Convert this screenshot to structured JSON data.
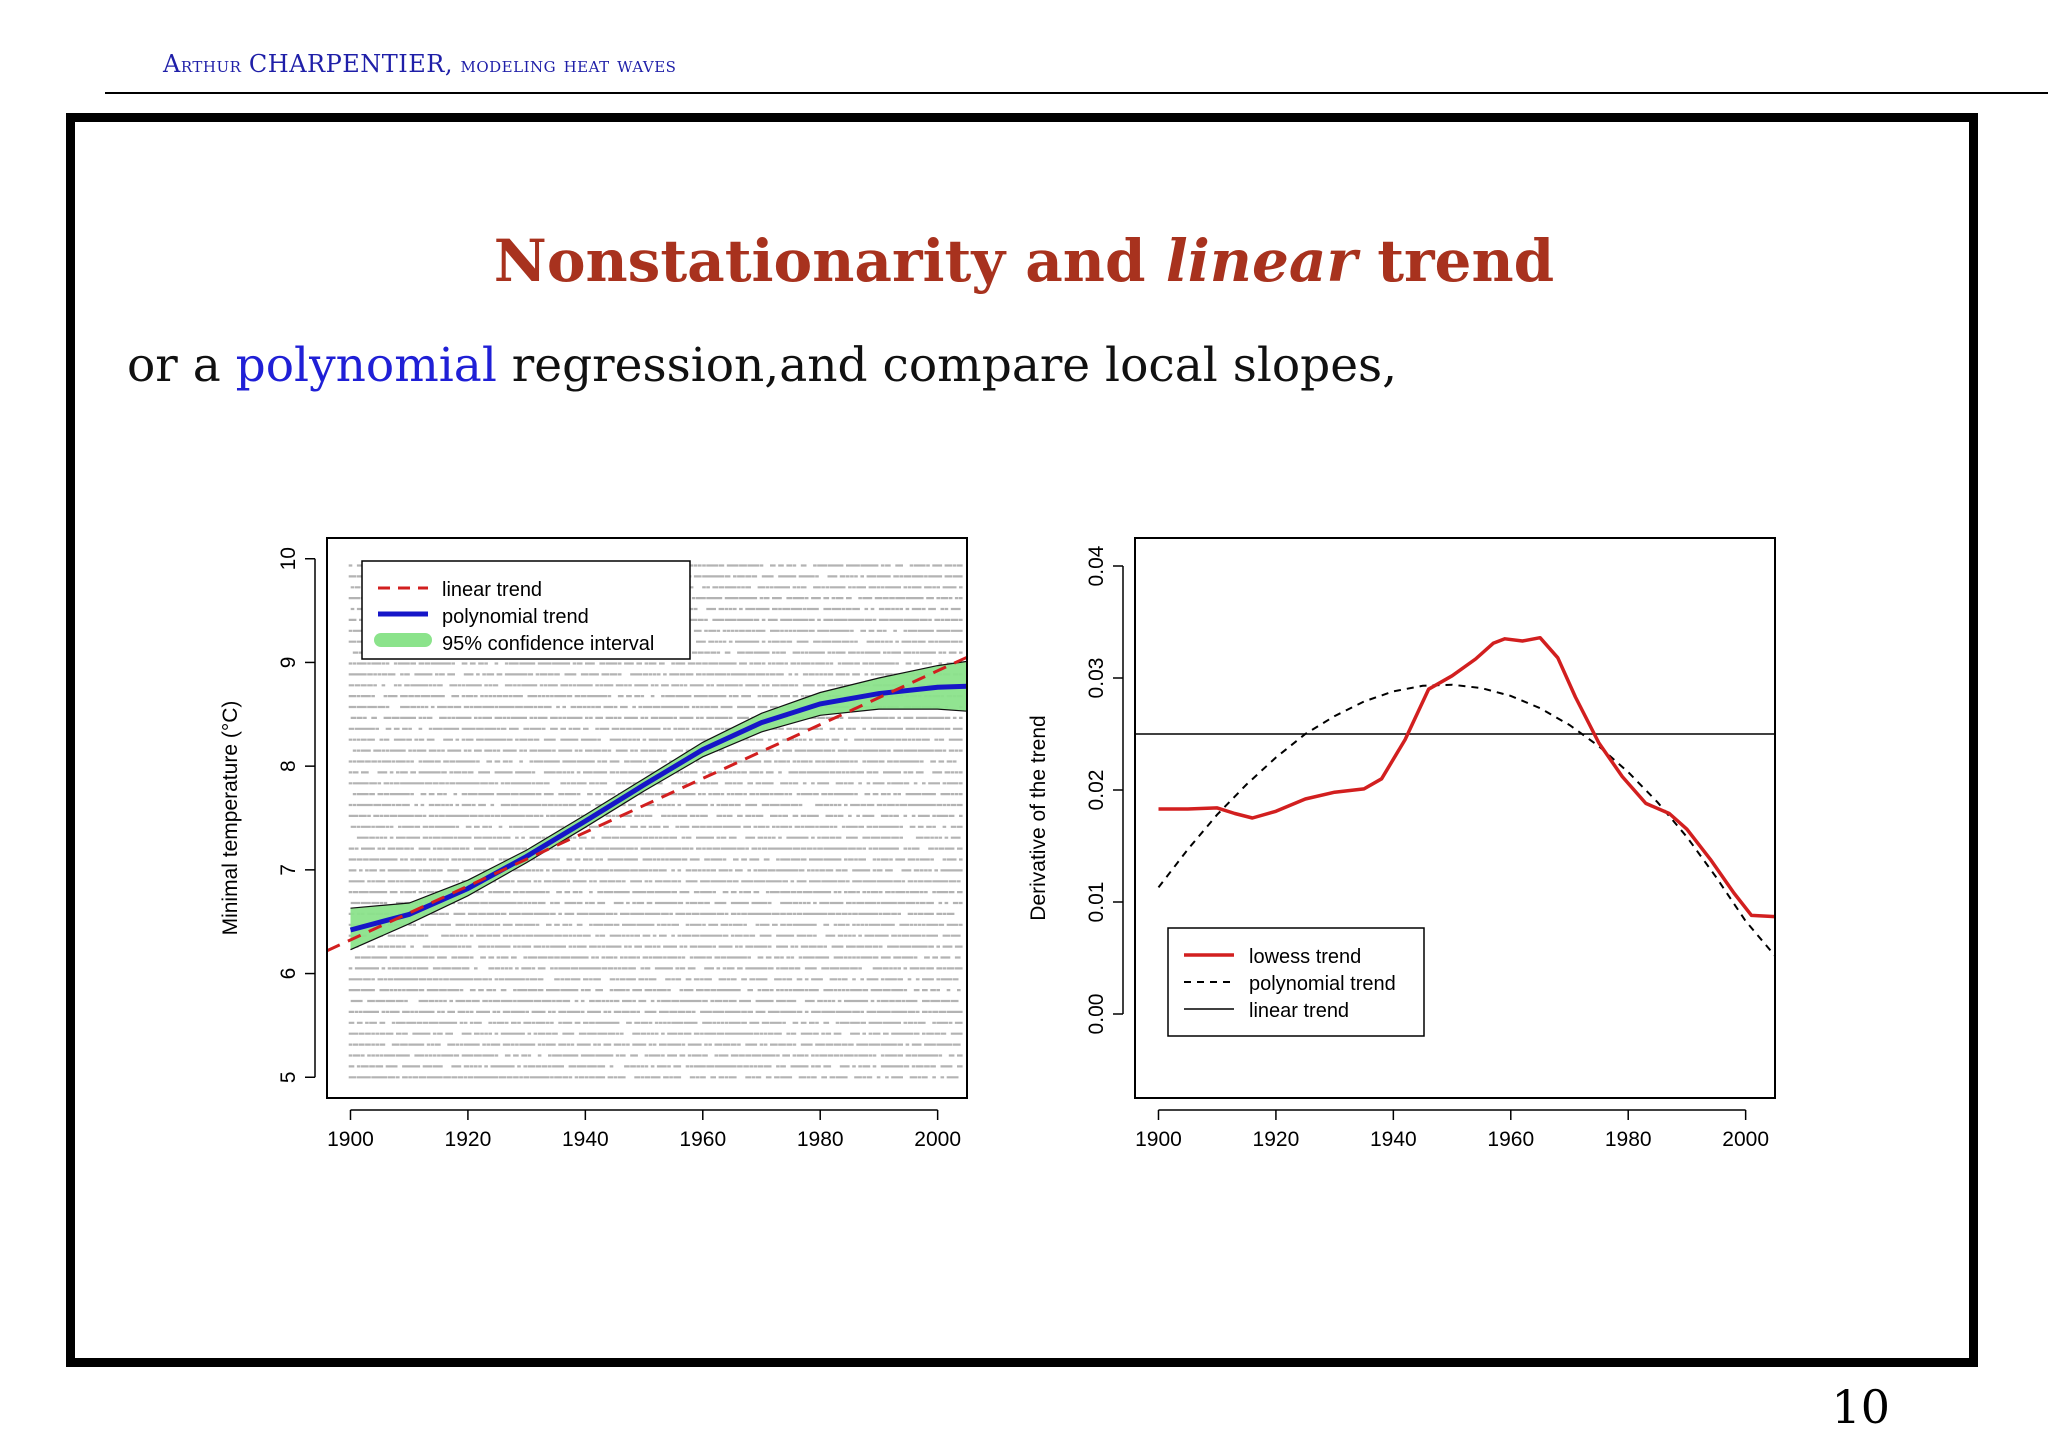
{
  "header": {
    "author_first_initial": "A",
    "author_first_rest": "rthur",
    "author_last": "CHARPENTIER,",
    "subject": "modeling heat waves"
  },
  "slide": {
    "title_part1": "Nonstationarity and ",
    "title_italic": "linear",
    "title_part2": " trend",
    "subtitle_part1": "or a ",
    "subtitle_highlight": "polynomial",
    "subtitle_part2": " regression,and compare local slopes,",
    "page_number": "10"
  },
  "colors": {
    "red": "#d21f1f",
    "blue": "#1616c8",
    "green": "#8be38b",
    "gray": "#a0a0a0",
    "title": "#a8321e"
  },
  "chart_data": [
    {
      "type": "scatter",
      "ylabel": "Minimal temperature (°C)",
      "xlim": [
        1896,
        2005
      ],
      "ylim": [
        4.8,
        10.2
      ],
      "xticks": [
        1900,
        1920,
        1940,
        1960,
        1980,
        2000
      ],
      "yticks": [
        5,
        6,
        7,
        8,
        9,
        10
      ],
      "legend_position": "top-left",
      "legend": [
        "linear trend",
        "polynomial trend",
        "95% confidence interval"
      ],
      "scatter_note_values": "raw daily observations, integer-rounded gray points spanning 5 to 10",
      "linear_trend": {
        "x": [
          1896,
          2005
        ],
        "y": [
          6.22,
          9.05
        ]
      },
      "polynomial_trend": {
        "x": [
          1900,
          1910,
          1920,
          1930,
          1940,
          1950,
          1960,
          1970,
          1980,
          1990,
          2000,
          2005
        ],
        "y": [
          6.42,
          6.57,
          6.82,
          7.13,
          7.47,
          7.82,
          8.16,
          8.42,
          8.6,
          8.7,
          8.76,
          8.77
        ]
      },
      "confidence_interval": {
        "x": [
          1900,
          1910,
          1920,
          1930,
          1940,
          1950,
          1960,
          1970,
          1980,
          1990,
          2000,
          2005
        ],
        "lower": [
          6.23,
          6.48,
          6.75,
          7.07,
          7.41,
          7.76,
          8.09,
          8.33,
          8.49,
          8.55,
          8.55,
          8.53
        ],
        "upper": [
          6.63,
          6.68,
          6.9,
          7.19,
          7.53,
          7.88,
          8.23,
          8.51,
          8.71,
          8.85,
          8.97,
          9.01
        ]
      }
    },
    {
      "type": "line",
      "ylabel": "Derivative of the trend",
      "xlim": [
        1896,
        2005
      ],
      "ylim": [
        -0.0075,
        0.0425
      ],
      "xticks": [
        1900,
        1920,
        1940,
        1960,
        1980,
        2000
      ],
      "yticks": [
        "0.00",
        "0.01",
        "0.02",
        "0.03",
        "0.04"
      ],
      "legend_position": "bottom-left",
      "legend": [
        "lowess trend",
        "polynomial trend",
        "linear trend"
      ],
      "lowess_trend": {
        "x": [
          1900,
          1905,
          1910,
          1913,
          1916,
          1920,
          1925,
          1930,
          1935,
          1938,
          1942,
          1946,
          1950,
          1954,
          1957,
          1959,
          1962,
          1965,
          1968,
          1971,
          1975,
          1979,
          1983,
          1987,
          1990,
          1994,
          1998,
          2001,
          2005
        ],
        "y": [
          0.0183,
          0.0183,
          0.0184,
          0.0179,
          0.0175,
          0.0181,
          0.0192,
          0.0198,
          0.0201,
          0.021,
          0.0245,
          0.029,
          0.0302,
          0.0317,
          0.0331,
          0.0335,
          0.0333,
          0.0336,
          0.0318,
          0.0283,
          0.0242,
          0.0212,
          0.0188,
          0.0179,
          0.0165,
          0.0138,
          0.0108,
          0.0088,
          0.0087
        ]
      },
      "polynomial_trend": {
        "x": [
          1900,
          1905,
          1910,
          1915,
          1920,
          1925,
          1930,
          1935,
          1940,
          1945,
          1950,
          1955,
          1960,
          1965,
          1970,
          1975,
          1980,
          1985,
          1990,
          1995,
          2000,
          2005
        ],
        "y": [
          0.0113,
          0.0147,
          0.0178,
          0.0205,
          0.0229,
          0.025,
          0.0266,
          0.0279,
          0.0288,
          0.0293,
          0.0294,
          0.0291,
          0.0284,
          0.0273,
          0.0258,
          0.0239,
          0.0216,
          0.0189,
          0.0158,
          0.0122,
          0.0083,
          0.0052
        ]
      },
      "linear_trend": {
        "y": 0.025
      }
    }
  ]
}
